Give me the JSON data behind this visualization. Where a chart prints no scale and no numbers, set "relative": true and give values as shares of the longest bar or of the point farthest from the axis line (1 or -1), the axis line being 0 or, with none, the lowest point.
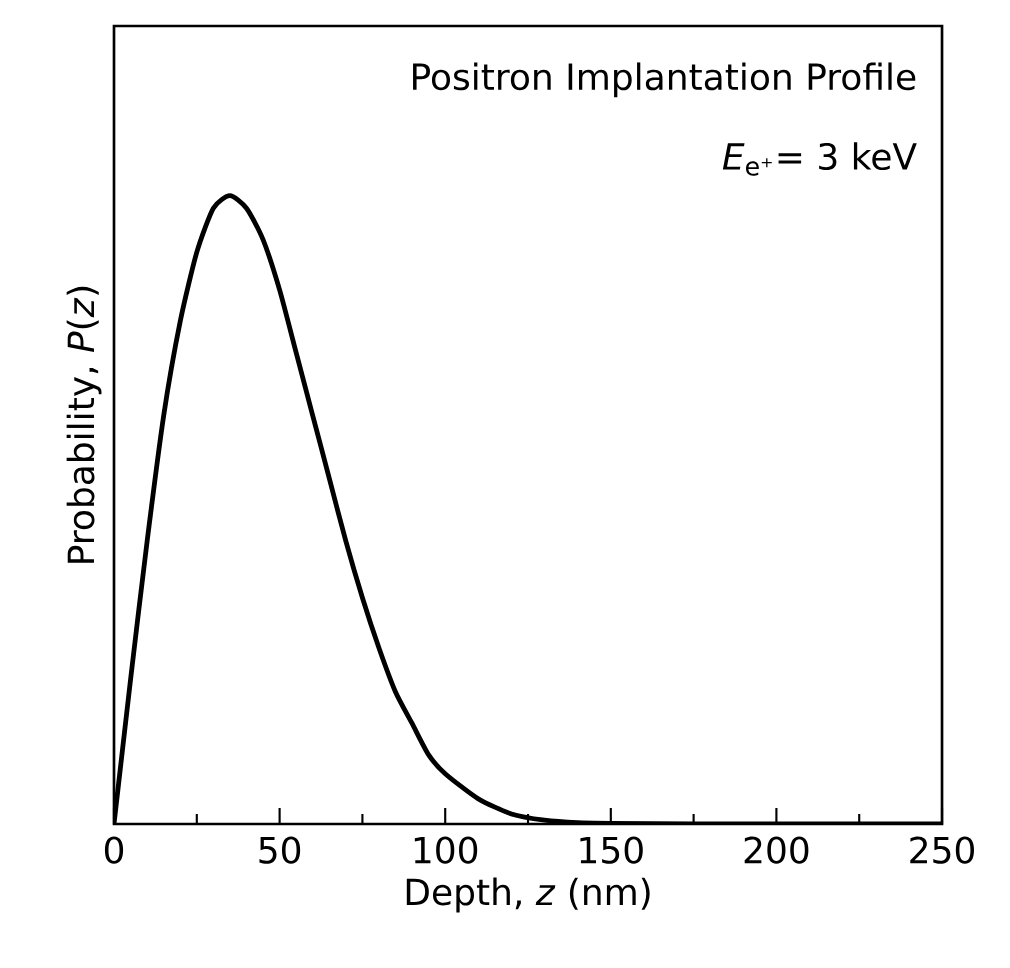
{
  "chart_data": {
    "type": "line",
    "relative": true,
    "title": "Positron Implantation Profile",
    "annotations": [
      "*E*$_{e⁺}$= 3 keV"
    ],
    "xlabel": "Depth, *z* (nm)",
    "ylabel": "Probability, *P*(*z*)",
    "xlim": [
      0,
      250
    ],
    "xticks": [
      0,
      50,
      100,
      150,
      200,
      250
    ],
    "grid": false,
    "marker": "none",
    "line_style": "solid",
    "series": [
      {
        "color": "#000000",
        "x": [
          0,
          5,
          10,
          15,
          20,
          25,
          30,
          35,
          40,
          45,
          50,
          55,
          60,
          65,
          70,
          75,
          80,
          85,
          90,
          95,
          100,
          110,
          120,
          130,
          140,
          150,
          175,
          200,
          250
        ],
        "values": [
          0,
          0.23,
          0.45,
          0.65,
          0.8,
          0.91,
          0.98,
          1,
          0.98,
          0.93,
          0.85,
          0.75,
          0.65,
          0.55,
          0.45,
          0.36,
          0.28,
          0.21,
          0.16,
          0.11,
          0.08,
          0.04,
          0.016,
          0.006,
          0.002,
          0.001,
          0,
          0,
          0
        ]
      }
    ]
  }
}
